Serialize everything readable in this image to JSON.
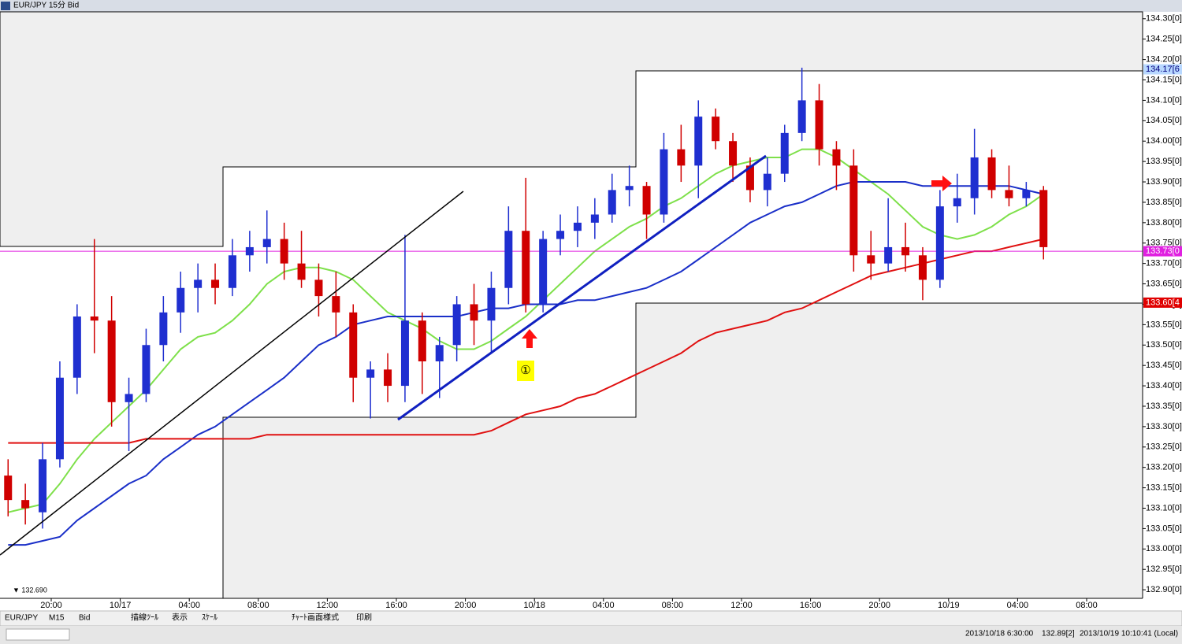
{
  "window_title": "EUR/JPY 15分 Bid",
  "toolbar": [
    "EUR/JPY",
    "M15",
    "Bid",
    "描線ﾂｰﾙ",
    "表示",
    "ｽｹｰﾙ",
    "ﾁｬｰﾄ画面様式",
    "印刷"
  ],
  "status_bar": [
    "2013/10/18 6:30:00",
    "132.89[2]",
    "2013/10/19 10:10:41 (Local)"
  ],
  "chart_data": {
    "type": "candlestick",
    "categories": [
      null,
      null,
      null,
      "20:00",
      null,
      null,
      null,
      "10/17",
      null,
      null,
      null,
      "04:00",
      null,
      null,
      null,
      "08:00",
      null,
      null,
      null,
      "12:00",
      null,
      null,
      null,
      "16:00",
      null,
      null,
      null,
      "20:00",
      null,
      null,
      null,
      "10/18",
      null,
      null,
      null,
      "04:00",
      null,
      null,
      null,
      "08:00",
      null,
      null,
      null,
      "12:00",
      null,
      null,
      null,
      "16:00",
      null,
      null,
      null,
      "20:00",
      null,
      null,
      null,
      "10/19",
      null,
      null,
      null,
      "04:00",
      null,
      null,
      null,
      "08:00"
    ],
    "open": [
      133.18,
      133.12,
      133.09,
      133.22,
      133.42,
      133.57,
      133.56,
      133.36,
      133.38,
      133.5,
      133.58,
      133.64,
      133.66,
      133.64,
      133.72,
      133.74,
      133.76,
      133.7,
      133.66,
      133.62,
      133.58,
      133.42,
      133.44,
      133.4,
      133.56,
      133.46,
      133.5,
      133.6,
      133.56,
      133.64,
      133.78,
      133.6,
      133.76,
      133.78,
      133.8,
      133.82,
      133.88,
      133.89,
      133.82,
      133.98,
      133.94,
      134.06,
      134.0,
      133.94,
      133.88,
      133.92,
      134.02,
      134.1,
      133.98,
      133.94,
      133.72,
      133.7,
      133.74,
      133.72,
      133.66,
      133.84,
      133.86,
      133.96,
      133.88,
      133.86,
      133.88,
      null,
      null,
      null
    ],
    "high": [
      133.22,
      133.16,
      133.26,
      133.46,
      133.6,
      133.76,
      133.62,
      133.42,
      133.54,
      133.62,
      133.68,
      133.7,
      133.7,
      133.76,
      133.78,
      133.83,
      133.8,
      133.78,
      133.7,
      133.68,
      133.6,
      133.46,
      133.48,
      133.77,
      133.58,
      133.52,
      133.62,
      133.65,
      133.68,
      133.84,
      133.91,
      133.78,
      133.82,
      133.84,
      133.86,
      133.92,
      133.94,
      133.9,
      134.02,
      134.04,
      134.1,
      134.08,
      134.02,
      133.96,
      133.96,
      134.04,
      134.18,
      134.14,
      134.0,
      133.98,
      133.78,
      133.86,
      133.8,
      133.74,
      133.88,
      133.92,
      134.03,
      133.98,
      133.94,
      133.9,
      133.89,
      null,
      null,
      null
    ],
    "low": [
      133.08,
      133.06,
      133.05,
      133.2,
      133.38,
      133.48,
      133.3,
      133.24,
      133.36,
      133.46,
      133.53,
      133.58,
      133.6,
      133.62,
      133.68,
      133.7,
      133.66,
      133.64,
      133.57,
      133.52,
      133.36,
      133.32,
      133.36,
      133.36,
      133.38,
      133.37,
      133.46,
      133.5,
      133.48,
      133.6,
      133.58,
      133.58,
      133.72,
      133.74,
      133.76,
      133.8,
      133.84,
      133.76,
      133.8,
      133.9,
      133.86,
      133.98,
      133.9,
      133.85,
      133.84,
      133.9,
      134.0,
      133.94,
      133.88,
      133.68,
      133.66,
      133.68,
      133.68,
      133.61,
      133.64,
      133.8,
      133.82,
      133.86,
      133.84,
      133.84,
      133.71,
      null,
      null,
      null
    ],
    "close": [
      133.12,
      133.1,
      133.22,
      133.42,
      133.57,
      133.56,
      133.36,
      133.38,
      133.5,
      133.58,
      133.64,
      133.66,
      133.64,
      133.72,
      133.74,
      133.76,
      133.7,
      133.66,
      133.62,
      133.58,
      133.42,
      133.44,
      133.4,
      133.56,
      133.46,
      133.5,
      133.6,
      133.56,
      133.64,
      133.78,
      133.6,
      133.76,
      133.78,
      133.8,
      133.82,
      133.88,
      133.89,
      133.82,
      133.98,
      133.94,
      134.06,
      134.0,
      133.94,
      133.88,
      133.92,
      134.02,
      134.1,
      133.98,
      133.94,
      133.72,
      133.7,
      133.74,
      133.72,
      133.66,
      133.84,
      133.86,
      133.96,
      133.88,
      133.86,
      133.88,
      133.74,
      null,
      null,
      null
    ],
    "up_color": "#1f2fd0",
    "down_color": "#d00000",
    "moving_averages": [
      {
        "color": "#7ee04a",
        "values": [
          133.09,
          133.1,
          133.11,
          133.16,
          133.22,
          133.27,
          133.31,
          133.35,
          133.39,
          133.44,
          133.49,
          133.52,
          133.53,
          133.56,
          133.6,
          133.65,
          133.68,
          133.69,
          133.69,
          133.68,
          133.66,
          133.62,
          133.58,
          133.56,
          133.54,
          133.51,
          133.49,
          133.49,
          133.51,
          133.54,
          133.57,
          133.61,
          133.65,
          133.69,
          133.73,
          133.76,
          133.79,
          133.81,
          133.84,
          133.86,
          133.89,
          133.92,
          133.94,
          133.95,
          133.96,
          133.96,
          133.98,
          133.98,
          133.96,
          133.93,
          133.9,
          133.87,
          133.83,
          133.79,
          133.77,
          133.76,
          133.77,
          133.79,
          133.82,
          133.84,
          133.87,
          null,
          null,
          null
        ]
      },
      {
        "color": "#1a2fc8",
        "values": [
          133.01,
          133.01,
          133.02,
          133.03,
          133.07,
          133.1,
          133.13,
          133.16,
          133.18,
          133.22,
          133.25,
          133.28,
          133.3,
          133.33,
          133.36,
          133.39,
          133.42,
          133.46,
          133.5,
          133.52,
          133.55,
          133.56,
          133.57,
          133.57,
          133.57,
          133.57,
          133.57,
          133.58,
          133.59,
          133.59,
          133.6,
          133.6,
          133.6,
          133.61,
          133.61,
          133.62,
          133.63,
          133.64,
          133.66,
          133.68,
          133.71,
          133.74,
          133.77,
          133.8,
          133.82,
          133.84,
          133.85,
          133.87,
          133.89,
          133.9,
          133.9,
          133.9,
          133.9,
          133.89,
          133.89,
          133.89,
          133.89,
          133.89,
          133.89,
          133.88,
          133.87,
          null,
          null,
          null
        ]
      },
      {
        "color": "#e01010",
        "values": [
          133.26,
          133.26,
          133.26,
          133.26,
          133.26,
          133.26,
          133.26,
          133.26,
          133.27,
          133.27,
          133.27,
          133.27,
          133.27,
          133.27,
          133.27,
          133.28,
          133.28,
          133.28,
          133.28,
          133.28,
          133.28,
          133.28,
          133.28,
          133.28,
          133.28,
          133.28,
          133.28,
          133.28,
          133.29,
          133.31,
          133.33,
          133.34,
          133.35,
          133.37,
          133.38,
          133.4,
          133.42,
          133.44,
          133.46,
          133.48,
          133.51,
          133.53,
          133.54,
          133.55,
          133.56,
          133.58,
          133.59,
          133.61,
          133.63,
          133.65,
          133.67,
          133.68,
          133.69,
          133.7,
          133.71,
          133.72,
          133.73,
          133.73,
          133.74,
          133.75,
          133.76,
          null,
          null,
          null
        ]
      }
    ],
    "ylim": [
      132.879,
      134.317
    ],
    "yticks": [
      {
        "value": 132.9,
        "label": "132.90[0]"
      },
      {
        "value": 132.95,
        "label": "132.95[0]"
      },
      {
        "value": 133.0,
        "label": "133.00[0]"
      },
      {
        "value": 133.05,
        "label": "133.05[0]"
      },
      {
        "value": 133.1,
        "label": "133.10[0]"
      },
      {
        "value": 133.15,
        "label": "133.15[0]"
      },
      {
        "value": 133.2,
        "label": "133.20[0]"
      },
      {
        "value": 133.25,
        "label": "133.25[0]"
      },
      {
        "value": 133.3,
        "label": "133.30[0]"
      },
      {
        "value": 133.35,
        "label": "133.35[0]"
      },
      {
        "value": 133.4,
        "label": "133.40[0]"
      },
      {
        "value": 133.45,
        "label": "133.45[0]"
      },
      {
        "value": 133.5,
        "label": "133.50[0]"
      },
      {
        "value": 133.55,
        "label": "133.55[0]"
      },
      {
        "value": 133.6,
        "label": "133.60[0]"
      },
      {
        "value": 133.65,
        "label": "133.65[0]"
      },
      {
        "value": 133.7,
        "label": "133.70[0]"
      },
      {
        "value": 133.75,
        "label": "133.75[0]"
      },
      {
        "value": 133.8,
        "label": "133.80[0]"
      },
      {
        "value": 133.85,
        "label": "133.85[0]"
      },
      {
        "value": 133.9,
        "label": "133.90[0]"
      },
      {
        "value": 133.95,
        "label": "133.95[0]"
      },
      {
        "value": 134.0,
        "label": "134.00[0]"
      },
      {
        "value": 134.05,
        "label": "134.05[0]"
      },
      {
        "value": 134.1,
        "label": "134.10[0]"
      },
      {
        "value": 134.15,
        "label": "134.15[0]"
      },
      {
        "value": 134.2,
        "label": "134.20[0]"
      },
      {
        "value": 134.25,
        "label": "134.25[0]"
      },
      {
        "value": 134.3,
        "label": "134.30[0]"
      }
    ],
    "price_labels": [
      {
        "value": 134.176,
        "label": "134.17[6",
        "color": "#b8d8ff",
        "text_color": "#000080",
        "line": false
      },
      {
        "value": 133.73,
        "label": "133.73[0",
        "color": "#e020e0",
        "text_color": "#ffffff",
        "line": true
      },
      {
        "value": 133.604,
        "label": "133.60[4",
        "color": "#e00000",
        "text_color": "#ffffff",
        "line": false
      }
    ],
    "low_label": "▼ 132.690",
    "annotation": "①"
  }
}
